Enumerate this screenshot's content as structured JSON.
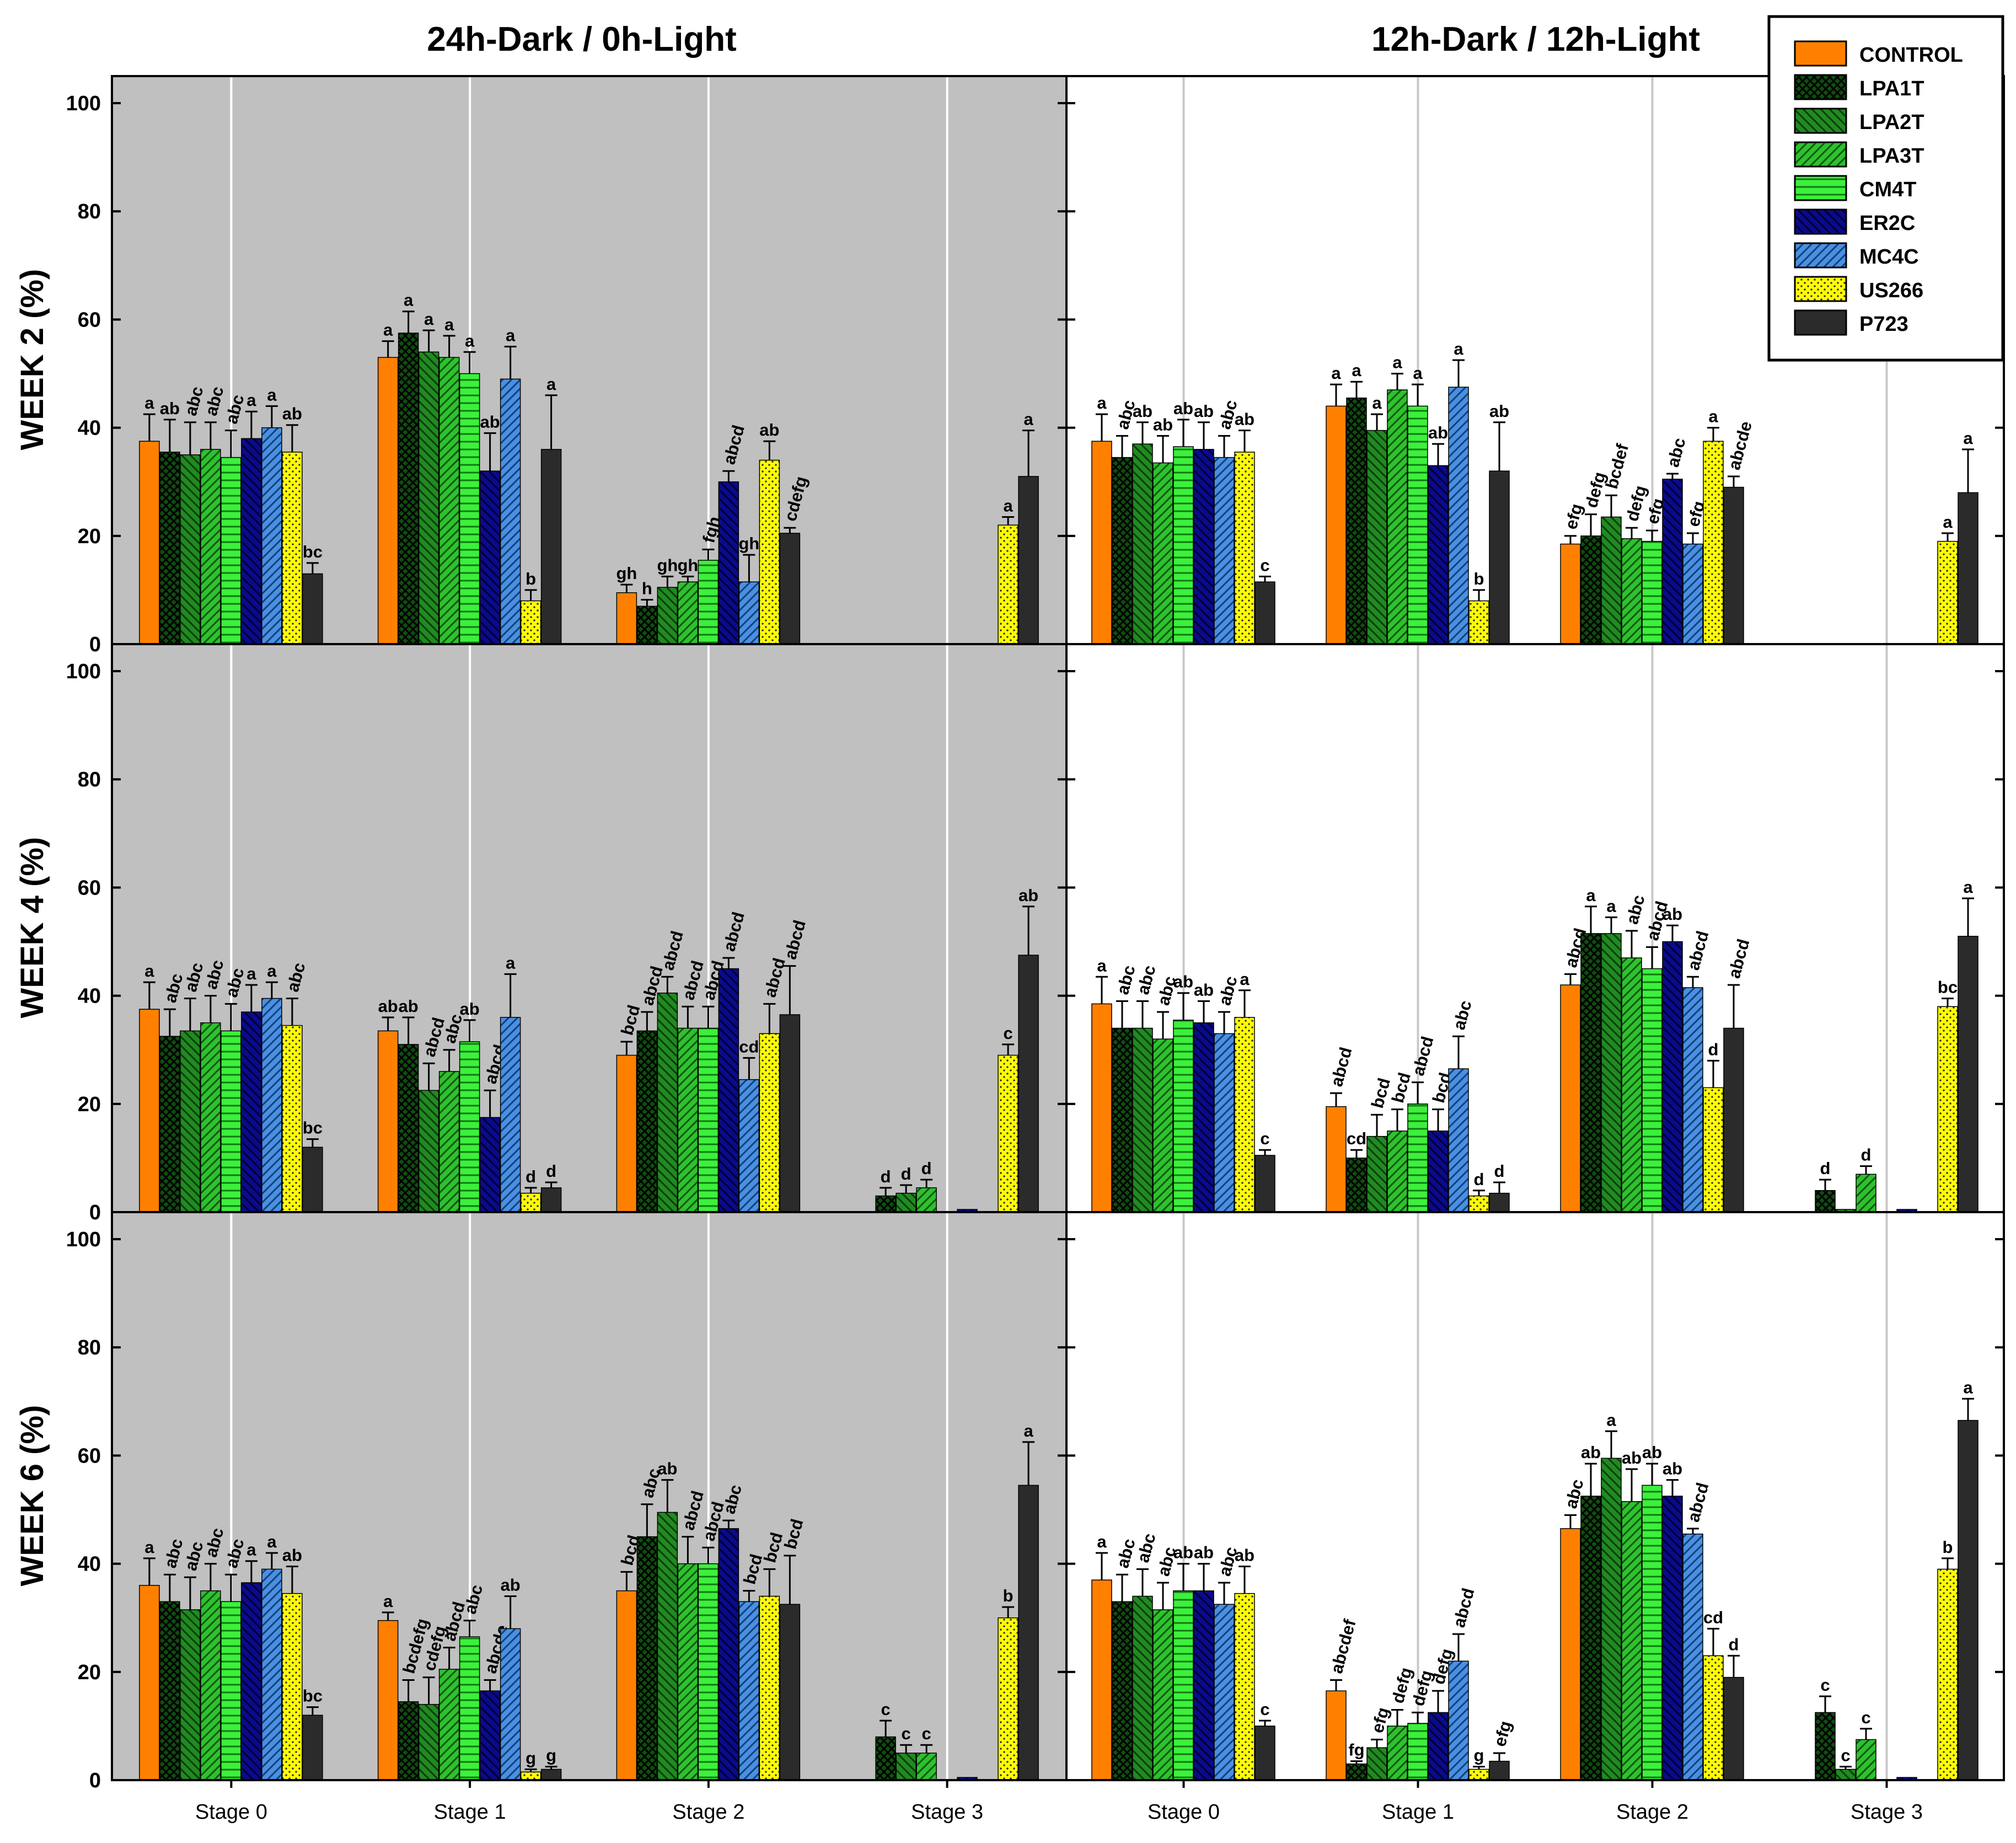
{
  "chart_data": {
    "type": "bar",
    "column_titles": [
      "24h-Dark / 0h-Light",
      "12h-Dark / 12h-Light"
    ],
    "row_labels": [
      "WEEK 2 (%)",
      "WEEK 4 (%)",
      "WEEK 6 (%)"
    ],
    "categories": [
      "Stage 0",
      "Stage 1",
      "Stage 2",
      "Stage 3"
    ],
    "y_ticks": [
      "0",
      "20",
      "40",
      "60",
      "80",
      "100"
    ],
    "ylim": [
      0,
      105
    ],
    "legend_position": "top-right",
    "series": [
      {
        "name": "CONTROL",
        "color": "#FF8000",
        "pattern": "solid"
      },
      {
        "name": "LPA1T",
        "color": "#0F4D0F",
        "pattern": "crosshatch"
      },
      {
        "name": "LPA2T",
        "color": "#218A21",
        "pattern": "back-diagonal"
      },
      {
        "name": "LPA3T",
        "color": "#2DC22D",
        "pattern": "forward-diagonal"
      },
      {
        "name": "CM4T",
        "color": "#3CF03C",
        "pattern": "horizontal"
      },
      {
        "name": "ER2C",
        "color": "#0A0A8C",
        "pattern": "back-diagonal"
      },
      {
        "name": "MC4C",
        "color": "#4A90E2",
        "pattern": "forward-diagonal"
      },
      {
        "name": "US266",
        "color": "#FFFF00",
        "pattern": "dots"
      },
      {
        "name": "P723",
        "color": "#2B2B2B",
        "pattern": "solid"
      }
    ],
    "panels": [
      {
        "condition": "24h-Dark / 0h-Light",
        "week": "WEEK 2",
        "groups": [
          {
            "stage": "Stage 0",
            "values": [
              37.5,
              35.5,
              35,
              36,
              34.5,
              38,
              40,
              35.5,
              13
            ],
            "errors": [
              5,
              6,
              6,
              5,
              5,
              5,
              4,
              5,
              2
            ],
            "letters": [
              "a",
              "ab",
              "abc",
              "abc",
              "abc",
              "a",
              "a",
              "ab",
              "bc"
            ]
          },
          {
            "stage": "Stage 1",
            "values": [
              53,
              57.5,
              54,
              53,
              50,
              32,
              49,
              8,
              36
            ],
            "errors": [
              3,
              4,
              4,
              4,
              4,
              7,
              6,
              2,
              10
            ],
            "letters": [
              "a",
              "a",
              "a",
              "a",
              "a",
              "ab",
              "a",
              "b",
              "a"
            ]
          },
          {
            "stage": "Stage 2",
            "values": [
              9.5,
              7,
              10.5,
              11.5,
              15.5,
              30,
              11.5,
              34,
              20.5
            ],
            "errors": [
              1.5,
              1.2,
              2,
              1,
              2,
              2,
              5,
              3.5,
              1
            ],
            "letters": [
              "gh",
              "h",
              "gh",
              "gh",
              "fgh",
              "abcd",
              "gh",
              "ab",
              "cdefg"
            ]
          },
          {
            "stage": "Stage 3",
            "values": [
              0,
              0,
              0,
              0,
              0,
              0,
              0,
              22,
              31
            ],
            "errors": [
              0,
              0,
              0,
              0,
              0,
              0,
              0,
              1.5,
              8.5
            ],
            "letters": [
              "",
              "",
              "",
              "",
              "",
              "",
              "",
              "a",
              "a"
            ]
          }
        ]
      },
      {
        "condition": "12h-Dark / 12h-Light",
        "week": "WEEK 2",
        "groups": [
          {
            "stage": "Stage 0",
            "values": [
              37.5,
              34.5,
              37,
              33.5,
              36.5,
              36,
              34.5,
              35.5,
              11.5
            ],
            "errors": [
              5,
              4,
              4,
              5,
              5,
              5,
              4,
              4,
              1
            ],
            "letters": [
              "a",
              "abc",
              "ab",
              "ab",
              "ab",
              "ab",
              "abc",
              "ab",
              "c"
            ]
          },
          {
            "stage": "Stage 1",
            "values": [
              44,
              45.5,
              39.5,
              47,
              44,
              33,
              47.5,
              8,
              32
            ],
            "errors": [
              4,
              3,
              3,
              3,
              4,
              4,
              5,
              2,
              9
            ],
            "letters": [
              "a",
              "a",
              "a",
              "a",
              "a",
              "ab",
              "a",
              "b",
              "ab"
            ]
          },
          {
            "stage": "Stage 2",
            "values": [
              18.5,
              20,
              23.5,
              19.5,
              19,
              30.5,
              18.5,
              37.5,
              29
            ],
            "errors": [
              1.5,
              4,
              4,
              2,
              2,
              1,
              2,
              2.5,
              2
            ],
            "letters": [
              "efg",
              "defg",
              "bcdef",
              "defg",
              "efg",
              "abc",
              "efg",
              "a",
              "abcde"
            ]
          },
          {
            "stage": "Stage 3",
            "values": [
              0,
              0,
              0,
              0,
              0,
              0,
              0,
              19,
              28
            ],
            "errors": [
              0,
              0,
              0,
              0,
              0,
              0,
              0,
              1.5,
              8
            ],
            "letters": [
              "",
              "",
              "",
              "",
              "",
              "",
              "",
              "a",
              "a"
            ]
          }
        ]
      },
      {
        "condition": "24h-Dark / 0h-Light",
        "week": "WEEK 4",
        "groups": [
          {
            "stage": "Stage 0",
            "values": [
              37.5,
              32.5,
              33.5,
              35,
              33.5,
              37,
              39.5,
              34.5,
              12
            ],
            "errors": [
              5,
              5,
              6,
              5,
              5,
              5,
              3,
              5,
              1.5
            ],
            "letters": [
              "a",
              "abc",
              "abc",
              "abc",
              "abc",
              "a",
              "a",
              "abc",
              "bc"
            ]
          },
          {
            "stage": "Stage 1",
            "values": [
              33.5,
              31,
              22.5,
              26,
              31.5,
              17.5,
              36,
              3.5,
              4.5
            ],
            "errors": [
              2.5,
              5,
              5,
              4,
              4,
              5,
              8,
              1,
              1
            ],
            "letters": [
              "ab",
              "ab",
              "abcd",
              "abc",
              "ab",
              "abcd",
              "a",
              "d",
              "d"
            ]
          },
          {
            "stage": "Stage 2",
            "values": [
              29,
              33.5,
              40.5,
              34,
              34,
              45,
              24.5,
              33,
              36.5
            ],
            "errors": [
              2.5,
              3.5,
              3,
              4,
              4,
              2,
              4,
              5.5,
              9
            ],
            "letters": [
              "bcd",
              "abcd",
              "abcd",
              "abcd",
              "abcd",
              "abcd",
              "cd",
              "abcd",
              "abcd"
            ]
          },
          {
            "stage": "Stage 3",
            "values": [
              0,
              3,
              3.5,
              4.5,
              0,
              0.5,
              0,
              29,
              47.5
            ],
            "errors": [
              0,
              1.5,
              1.5,
              1.5,
              0,
              0,
              0,
              2,
              9
            ],
            "letters": [
              "",
              "d",
              "d",
              "d",
              "",
              "",
              "",
              "c",
              "ab"
            ]
          }
        ]
      },
      {
        "condition": "12h-Dark / 12h-Light",
        "week": "WEEK 4",
        "groups": [
          {
            "stage": "Stage 0",
            "values": [
              38.5,
              34,
              34,
              32,
              35.5,
              35,
              33,
              36,
              10.5
            ],
            "errors": [
              5,
              5,
              5,
              5,
              5,
              4,
              4,
              5,
              1
            ],
            "letters": [
              "a",
              "abc",
              "abc",
              "abc",
              "ab",
              "ab",
              "abc",
              "a",
              "c"
            ]
          },
          {
            "stage": "Stage 1",
            "values": [
              19.5,
              10,
              14,
              15,
              20,
              15,
              26.5,
              3,
              3.5
            ],
            "errors": [
              2.5,
              1.5,
              4,
              4,
              4,
              4,
              6,
              1,
              2
            ],
            "letters": [
              "abcd",
              "cd",
              "bcd",
              "bcd",
              "abcd",
              "bcd",
              "abc",
              "d",
              "d"
            ]
          },
          {
            "stage": "Stage 2",
            "values": [
              42,
              51.5,
              51.5,
              47,
              45,
              50,
              41.5,
              23,
              34
            ],
            "errors": [
              2,
              5,
              3,
              5,
              4,
              3,
              2,
              5,
              8
            ],
            "letters": [
              "abcd",
              "a",
              "a",
              "abc",
              "abcd",
              "ab",
              "abcd",
              "d",
              "abcd"
            ]
          },
          {
            "stage": "Stage 3",
            "values": [
              0,
              4,
              0.5,
              7,
              0,
              0.5,
              0,
              38,
              51
            ],
            "errors": [
              0,
              2,
              0,
              1.5,
              0,
              0,
              0,
              1.5,
              7
            ],
            "letters": [
              "",
              "d",
              "",
              "d",
              "",
              "",
              "",
              "bc",
              "a"
            ]
          }
        ]
      },
      {
        "condition": "24h-Dark / 0h-Light",
        "week": "WEEK 6",
        "groups": [
          {
            "stage": "Stage 0",
            "values": [
              36,
              33,
              31.5,
              35,
              33,
              36.5,
              39,
              34.5,
              12
            ],
            "errors": [
              5,
              5,
              6,
              5,
              5,
              4,
              3,
              5,
              1.5
            ],
            "letters": [
              "a",
              "abc",
              "abc",
              "abc",
              "abc",
              "a",
              "a",
              "ab",
              "bc"
            ]
          },
          {
            "stage": "Stage 1",
            "values": [
              29.5,
              14.5,
              14,
              20.5,
              26.5,
              16.5,
              28,
              1.5,
              2
            ],
            "errors": [
              1.5,
              4,
              5,
              4,
              3,
              2,
              6,
              0.5,
              0.5
            ],
            "letters": [
              "a",
              "bcdefg",
              "cdefg",
              "abcd",
              "abc",
              "abcde",
              "ab",
              "g",
              "g"
            ]
          },
          {
            "stage": "Stage 2",
            "values": [
              35,
              45,
              49.5,
              40,
              40,
              46.5,
              33,
              34,
              32.5
            ],
            "errors": [
              3.5,
              6,
              6,
              5,
              3,
              1.5,
              2,
              5,
              9
            ],
            "letters": [
              "bcd",
              "abc",
              "ab",
              "abcd",
              "abcd",
              "abc",
              "bcd",
              "bcd",
              "bcd"
            ]
          },
          {
            "stage": "Stage 3",
            "values": [
              0,
              8,
              5,
              5,
              0,
              0.5,
              0,
              30,
              54.5
            ],
            "errors": [
              0,
              3,
              1.5,
              1.5,
              0,
              0,
              0,
              2,
              8
            ],
            "letters": [
              "",
              "c",
              "c",
              "c",
              "",
              "",
              "",
              "b",
              "a"
            ]
          }
        ]
      },
      {
        "condition": "12h-Dark / 12h-Light",
        "week": "WEEK 6",
        "groups": [
          {
            "stage": "Stage 0",
            "values": [
              37,
              33,
              34,
              31.5,
              35,
              35,
              32.5,
              34.5,
              10
            ],
            "errors": [
              5,
              5,
              5,
              5,
              5,
              5,
              4,
              5,
              1
            ],
            "letters": [
              "a",
              "abc",
              "abc",
              "abc",
              "ab",
              "ab",
              "abc",
              "ab",
              "c"
            ]
          },
          {
            "stage": "Stage 1",
            "values": [
              16.5,
              3,
              6,
              10,
              10.5,
              12.5,
              22,
              2,
              3.5
            ],
            "errors": [
              2,
              0.5,
              1.5,
              3,
              2,
              4,
              5,
              0.5,
              1.5
            ],
            "letters": [
              "abcdef",
              "fg",
              "efg",
              "defg",
              "defg",
              "defg",
              "abcd",
              "g",
              "efg"
            ]
          },
          {
            "stage": "Stage 2",
            "values": [
              46.5,
              52.5,
              59.5,
              51.5,
              54.5,
              52.5,
              45.5,
              23,
              19
            ],
            "errors": [
              2.5,
              6,
              5,
              6,
              4,
              3,
              1,
              5,
              4
            ],
            "letters": [
              "abc",
              "ab",
              "a",
              "ab",
              "ab",
              "ab",
              "abcd",
              "cd",
              "d"
            ]
          },
          {
            "stage": "Stage 3",
            "values": [
              0,
              12.5,
              2,
              7.5,
              0,
              0.5,
              0,
              39,
              66.5
            ],
            "errors": [
              0,
              3,
              0.5,
              2,
              0,
              0,
              0,
              2,
              4
            ],
            "letters": [
              "",
              "c",
              "c",
              "c",
              "",
              "",
              "",
              "b",
              "a"
            ]
          }
        ]
      }
    ]
  }
}
